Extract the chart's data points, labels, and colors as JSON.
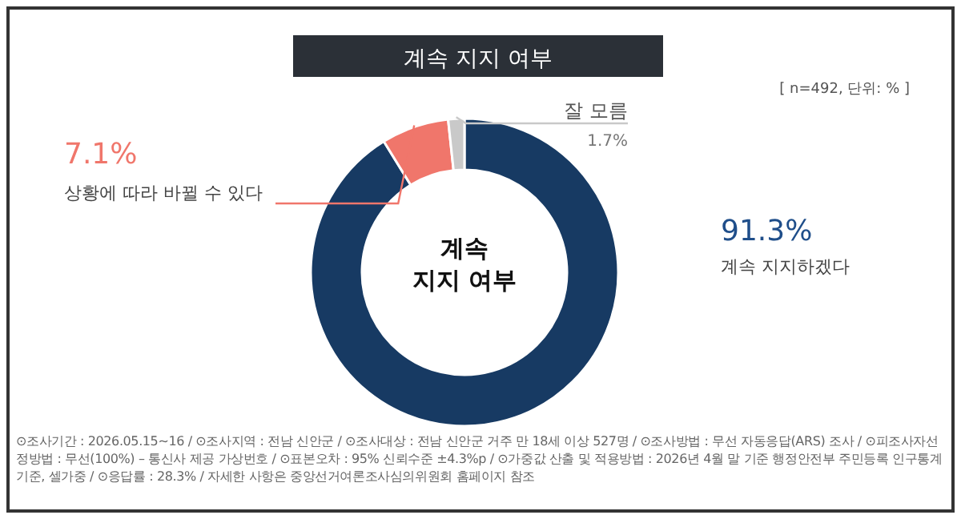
{
  "chart_data": {
    "type": "donut",
    "title": "계속 지지 여부",
    "subtitle": "[ n=492, 단위: % ]",
    "categories": [
      "계속 지지하겠다",
      "상황에 따라 바뀔 수 있다",
      "잘 모름"
    ],
    "values": [
      91.3,
      7.1,
      1.7
    ],
    "colors": [
      "#173a63",
      "#f0766b",
      "#c9c9c9"
    ],
    "value_labels": [
      "91.3%",
      "7.1%",
      "1.7%"
    ],
    "annotations": [
      "계속\n지지 여부",
      "⊙조사기간 : 2026.05.15~16 / ⊙조사지역 : 전남 신안군 / ⊙조사대상 : 전남 신안군 거주 만 18세 이상 527명 / ⊙조사방법 : 무선 자동응답(ARS) 조사 /",
      "⊙피조사자선정방법 : 무선(100%) – 통신사 제공 가상번호 / ⊙표본오차 : 95% 신뢰수준 ±4.3%p / ⊙가중값 산출 및 적용방법 : 2026년 4월 말 기준 행정안전부 주민등록 인구통계 기준, 셀가중 / ⊙응답률 : 28.3% /",
      "자세한 사항은 중앙선거여론조사심의위원회 홈페이지 참조"
    ]
  }
}
